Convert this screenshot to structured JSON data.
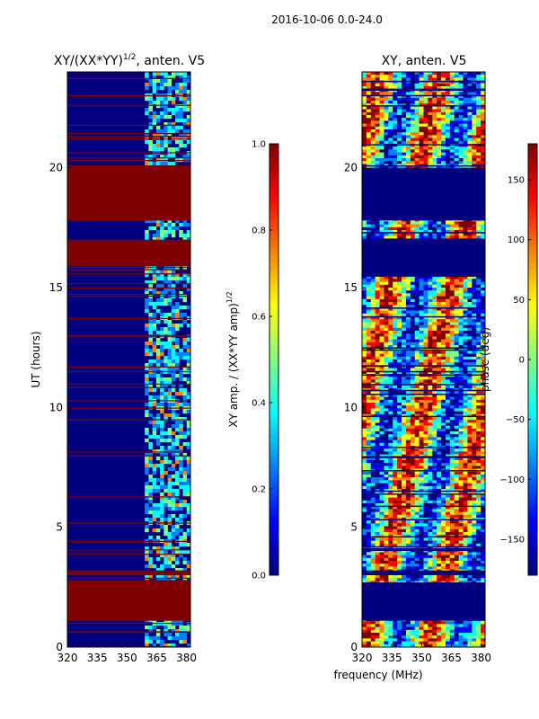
{
  "suptitle": "2016-10-06 0.0-24.0",
  "xlabel_shared": "frequency (MHz)",
  "colors": {
    "jet": [
      "#000080",
      "#0000ff",
      "#0080ff",
      "#00ffff",
      "#80ff80",
      "#ffff00",
      "#ff8000",
      "#ff0000",
      "#800000"
    ]
  },
  "chart_data": [
    {
      "type": "heatmap",
      "panel": "left",
      "title": "XY/(XX*YY)",
      "title_sup": "1/2",
      "title_suffix": ", anten. V5",
      "xlabel": "",
      "ylabel": "UT (hours)",
      "xlim": [
        320,
        382
      ],
      "ylim": [
        0,
        24
      ],
      "xticks": [
        320,
        335,
        350,
        365,
        380
      ],
      "yticks": [
        0,
        5,
        10,
        15,
        20
      ],
      "rfi_band_mhz": [
        359,
        382
      ],
      "saturated_blocks_hours": [
        [
          1.1,
          2.8
        ],
        [
          3.0,
          3.2
        ],
        [
          15.9,
          17.0
        ],
        [
          17.8,
          20.1
        ]
      ],
      "colorbar": {
        "label": "XY amp. / (XX*YY amp)",
        "label_sup": "1/2",
        "range": [
          0.0,
          1.0
        ],
        "ticks": [
          "0.0",
          "0.2",
          "0.4",
          "0.6",
          "0.8",
          "1.0"
        ]
      }
    },
    {
      "type": "heatmap",
      "panel": "right",
      "title": "XY, anten. V5",
      "xlabel": "frequency (MHz)",
      "ylabel": "",
      "xlim": [
        320,
        382
      ],
      "ylim": [
        0,
        24
      ],
      "xticks": [
        320,
        335,
        350,
        365,
        380
      ],
      "yticks": [
        0,
        5,
        10,
        15,
        20
      ],
      "flagged_blocks_hours": [
        [
          1.1,
          2.7
        ],
        [
          3.0,
          3.2
        ],
        [
          15.5,
          17.0
        ],
        [
          17.8,
          20.0
        ]
      ],
      "colorbar": {
        "label": "phase (deg)",
        "range": [
          -180,
          180
        ],
        "ticks": [
          "−150",
          "−100",
          "−50",
          "0",
          "50",
          "100",
          "150"
        ]
      }
    }
  ]
}
